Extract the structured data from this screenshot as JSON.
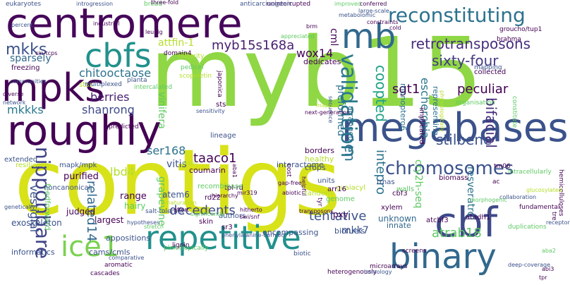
{
  "words": [
    {
      "t": "contigs",
      "c": "#d8e219"
    },
    {
      "t": "myb15",
      "c": "#8fd744"
    },
    {
      "t": "centromere",
      "c": "#46075a"
    },
    {
      "t": "megabases",
      "c": "#3b528b"
    },
    {
      "t": "roughly",
      "c": "#440154"
    },
    {
      "t": "repetitive",
      "c": "#21918c"
    },
    {
      "t": "binary",
      "c": "#31688e"
    },
    {
      "t": "cbf",
      "c": "#3e4a89"
    },
    {
      "t": "ice1",
      "c": "#7ad151"
    },
    {
      "t": "mpks",
      "c": "#440154"
    },
    {
      "t": "cbfs",
      "c": "#21918c"
    },
    {
      "t": "mb",
      "c": "#31688e"
    },
    {
      "t": "reconstituting",
      "c": "#2c728e"
    },
    {
      "t": "validation",
      "c": "#2a788e"
    },
    {
      "t": "chromosomes",
      "c": "#3b528b"
    },
    {
      "t": "nipponbare",
      "c": "#414487"
    },
    {
      "t": "retrotransposons",
      "c": "#472d7b"
    },
    {
      "t": "myb15s168a",
      "c": "#482173"
    },
    {
      "t": "sixty-four",
      "c": "#443983"
    },
    {
      "t": "mkkks",
      "c": "#2a788e"
    },
    {
      "t": "mkks",
      "c": "#3b528b"
    },
    {
      "t": "decedents",
      "c": "#3e4a89"
    },
    {
      "t": "stilbene",
      "c": "#3b528b"
    },
    {
      "t": "atrab18",
      "c": "#5ec962"
    },
    {
      "t": "peculiar",
      "c": "#440154"
    },
    {
      "t": "tentative",
      "c": "#3b528b"
    },
    {
      "t": "related14",
      "c": "#31688e"
    },
    {
      "t": "coopted",
      "c": "#1fa088"
    },
    {
      "t": "intepro",
      "c": "#2c728e"
    },
    {
      "t": "escherchia",
      "c": "#2a788e"
    },
    {
      "t": "bifacial",
      "c": "#472d7b"
    },
    {
      "t": "chitooctaose",
      "c": "#2c728e"
    },
    {
      "t": "sgt1",
      "c": "#440154"
    },
    {
      "t": "en",
      "c": "#2c728e"
    },
    {
      "t": "shanrong",
      "c": "#3e4a89"
    },
    {
      "t": "vestigial",
      "c": "#3b528b"
    },
    {
      "t": "taaco1",
      "c": "#440154"
    },
    {
      "t": "berries",
      "c": "#482173"
    },
    {
      "t": "wox14",
      "c": "#440154"
    },
    {
      "t": "ser168",
      "c": "#2c728e"
    },
    {
      "t": "lbd4",
      "c": "#b5de2b"
    },
    {
      "t": "vitis",
      "c": "#3b528b"
    },
    {
      "t": "attfin-1",
      "c": "#b5de2b"
    },
    {
      "t": "cml",
      "c": "#440154"
    },
    {
      "t": "preformed",
      "c": "#2c728e"
    },
    {
      "t": "mkk7",
      "c": "#3b528b"
    },
    {
      "t": "cry2h-seq",
      "c": "#5ec962"
    },
    {
      "t": "resveratrol",
      "c": "#2c728e"
    },
    {
      "t": "sparsely",
      "c": "#31688e"
    },
    {
      "t": "vinifera",
      "c": "#5ec962"
    },
    {
      "t": "grapevine",
      "c": "#5ec962"
    },
    {
      "t": "purified",
      "c": "#440154"
    },
    {
      "t": "range",
      "c": "#440154"
    },
    {
      "t": "atem6",
      "c": "#3b528b"
    },
    {
      "t": "hairy",
      "c": "#5ec962"
    },
    {
      "t": "largest",
      "c": "#440154"
    },
    {
      "t": "judged",
      "c": "#440154"
    },
    {
      "t": "feedforward",
      "c": "#5ec962"
    },
    {
      "t": "exoskeleton",
      "c": "#3b528b"
    },
    {
      "t": "pxy",
      "c": "#440154"
    },
    {
      "t": "unknown",
      "c": "#31688e"
    },
    {
      "t": "innate",
      "c": "#31688e"
    },
    {
      "t": "biofuels",
      "c": "#3b528b"
    },
    {
      "t": "encompassing",
      "c": "#3b528b"
    },
    {
      "t": "appositions",
      "c": "#3b528b"
    },
    {
      "t": "cams/cmls",
      "c": "#3b528b"
    },
    {
      "t": "informatics",
      "c": "#3b528b"
    },
    {
      "t": "coumarin",
      "c": "#440154"
    },
    {
      "t": "interactome",
      "c": "#3b528b"
    },
    {
      "t": "monoptero6",
      "c": "#2c728e"
    },
    {
      "t": "arranged",
      "c": "#2c728e"
    },
    {
      "t": "crops",
      "c": "#3b528b"
    },
    {
      "t": "healthy",
      "c": "#b5de2b"
    },
    {
      "t": "borders",
      "c": "#440154"
    },
    {
      "t": "dedicates",
      "c": "#440154"
    },
    {
      "t": "representing",
      "c": "#2c728e"
    },
    {
      "t": "implicated",
      "c": "#440154"
    },
    {
      "t": "collected",
      "c": "#440154"
    },
    {
      "t": "biomass",
      "c": "#440154"
    },
    {
      "t": "trnas",
      "c": "#3b528b"
    },
    {
      "t": "guaiacyl",
      "c": "#b5de2b"
    },
    {
      "t": "units",
      "c": "#3b528b"
    },
    {
      "t": "tpl-rd",
      "c": "#440154"
    },
    {
      "t": "recombinase",
      "c": "#5ec962"
    },
    {
      "t": "rd22",
      "c": "#440154"
    },
    {
      "t": "arr16",
      "c": "#440154"
    },
    {
      "t": "cbf3",
      "c": "#440154"
    },
    {
      "t": "tandem",
      "c": "#b5de2b"
    },
    {
      "t": "genome",
      "c": "#5ec962"
    },
    {
      "t": "authors",
      "c": "#3b528b"
    },
    {
      "t": "xylem",
      "c": "#440154"
    },
    {
      "t": "atcbf3",
      "c": "#440154"
    },
    {
      "t": "atadh1",
      "c": "#440154"
    },
    {
      "t": "walls",
      "c": "#5ec962"
    },
    {
      "t": "skin",
      "c": "#440154"
    },
    {
      "t": "sr3",
      "c": "#440154"
    },
    {
      "t": "sts",
      "c": "#440154"
    },
    {
      "t": "stss",
      "c": "#b5de2b"
    },
    {
      "t": "lineage",
      "c": "#3b528b"
    },
    {
      "t": "freezing",
      "c": "#440154"
    },
    {
      "t": "extended",
      "c": "#3b528b"
    },
    {
      "t": "resilience",
      "c": "#b5de2b"
    },
    {
      "t": "mapk/mpk",
      "c": "#3b528b"
    },
    {
      "t": "noncanonical",
      "c": "#3b528b"
    },
    {
      "t": "multiplexed",
      "c": "#3b528b"
    },
    {
      "t": "predicted",
      "c": "#440154"
    },
    {
      "t": "planta",
      "c": "#3b528b"
    },
    {
      "t": "intercalated",
      "c": "#5ec962"
    },
    {
      "t": "domain4",
      "c": "#440154"
    },
    {
      "t": "majority",
      "c": "#b5de2b"
    },
    {
      "t": "japonica",
      "c": "#440154"
    },
    {
      "t": "pedicel",
      "c": "#5ec962"
    },
    {
      "t": "scopoletin",
      "c": "#b5de2b"
    },
    {
      "t": "uninterrupted",
      "c": "#440154"
    },
    {
      "t": "bread",
      "c": "#5ec962"
    },
    {
      "t": "anticarcinogenic",
      "c": "#3b528b"
    },
    {
      "t": "eukaryotes",
      "c": "#3b528b"
    },
    {
      "t": "groucho/tup1",
      "c": "#440154"
    },
    {
      "t": "brahma",
      "c": "#440154"
    },
    {
      "t": "mapping",
      "c": "#3b528b"
    },
    {
      "t": "organisation",
      "c": "#5ec962"
    },
    {
      "t": "constitute",
      "c": "#5ec962"
    },
    {
      "t": "intracellularly",
      "c": "#5ec962"
    },
    {
      "t": "hemicelluloses",
      "c": "#440154"
    },
    {
      "t": "tm06",
      "c": "#440154"
    },
    {
      "t": "ac",
      "c": "#440154"
    },
    {
      "t": "fundamental",
      "c": "#440154"
    },
    {
      "t": "duplications",
      "c": "#5ec962"
    },
    {
      "t": "tre",
      "c": "#440154"
    },
    {
      "t": "biotic",
      "c": "#3b528b"
    },
    {
      "t": "screens",
      "c": "#440154"
    },
    {
      "t": "microarrays",
      "c": "#440154"
    },
    {
      "t": "heterogenously",
      "c": "#440154"
    },
    {
      "t": "cascades",
      "c": "#440154"
    },
    {
      "t": "aromatic",
      "c": "#440154"
    },
    {
      "t": "pleiotropically",
      "c": "#5ec962"
    },
    {
      "t": "salt-tolerant",
      "c": "#3b528b"
    },
    {
      "t": "lignin",
      "c": "#440154"
    },
    {
      "t": "tyr",
      "c": "#440154"
    },
    {
      "t": "cost",
      "c": "#440154"
    },
    {
      "t": "mir319",
      "c": "#440154"
    },
    {
      "t": "gap-free",
      "c": "#440154"
    },
    {
      "t": "abiotic",
      "c": "#440154"
    },
    {
      "t": "improved",
      "c": "#5ec962"
    },
    {
      "t": "conferred",
      "c": "#440154"
    },
    {
      "t": "large-scale",
      "c": "#3b528b"
    },
    {
      "t": "cold",
      "c": "#440154"
    },
    {
      "t": "brm",
      "c": "#440154"
    },
    {
      "t": "industrial",
      "c": "#440154"
    },
    {
      "t": "cin-tcps",
      "c": "#440154"
    },
    {
      "t": "percent",
      "c": "#3b528b"
    },
    {
      "t": "diverse",
      "c": "#440154"
    },
    {
      "t": "leunig",
      "c": "#440154"
    },
    {
      "t": "sensitivity",
      "c": "#3b528b"
    },
    {
      "t": "sequence",
      "c": "#3b528b"
    },
    {
      "t": "mapped",
      "c": "#b5de2b"
    },
    {
      "t": "maturation",
      "c": "#b5de2b"
    },
    {
      "t": "chitin",
      "c": "#b5de2b"
    },
    {
      "t": "effort",
      "c": "#440154"
    },
    {
      "t": "helpful",
      "c": "#440154"
    },
    {
      "t": "next-generation",
      "c": "#440154"
    },
    {
      "t": "aba1",
      "c": "#440154"
    },
    {
      "t": "aba2",
      "c": "#5ec962"
    },
    {
      "t": "abi3",
      "c": "#440154"
    },
    {
      "t": "tpr",
      "c": "#440154"
    },
    {
      "t": "receptor",
      "c": "#3b528b"
    },
    {
      "t": "collaboration",
      "c": "#3b528b"
    },
    {
      "t": "deep-coverage",
      "c": "#3b528b"
    },
    {
      "t": "homology",
      "c": "#3b528b"
    },
    {
      "t": "comparative",
      "c": "#3b528b"
    },
    {
      "t": "hypotheses",
      "c": "#3b528b"
    },
    {
      "t": "stretch",
      "c": "#5ec962"
    },
    {
      "t": "significantly",
      "c": "#5ec962"
    },
    {
      "t": "hitherto",
      "c": "#440154"
    },
    {
      "t": "swi/snf",
      "c": "#440154"
    },
    {
      "t": "transposons",
      "c": "#440154"
    },
    {
      "t": "metabolomic",
      "c": "#3b528b"
    },
    {
      "t": "constraints",
      "c": "#440154"
    },
    {
      "t": "communities",
      "c": "#3b528b"
    },
    {
      "t": "introgression",
      "c": "#3b528b"
    },
    {
      "t": "genetically",
      "c": "#3b528b"
    },
    {
      "t": "network",
      "c": "#3b528b"
    },
    {
      "t": "three-fold",
      "c": "#440154"
    },
    {
      "t": "appreciated",
      "c": "#5ec962"
    },
    {
      "t": "hierarchy",
      "c": "#440154"
    },
    {
      "t": "morphogenic",
      "c": "#5ec962"
    },
    {
      "t": "glucosylated",
      "c": "#b5de2b"
    },
    {
      "t": "phenylalanine-derived",
      "c": "#3b528b"
    },
    {
      "t": "physiologically",
      "c": "#b5de2b"
    }
  ]
}
